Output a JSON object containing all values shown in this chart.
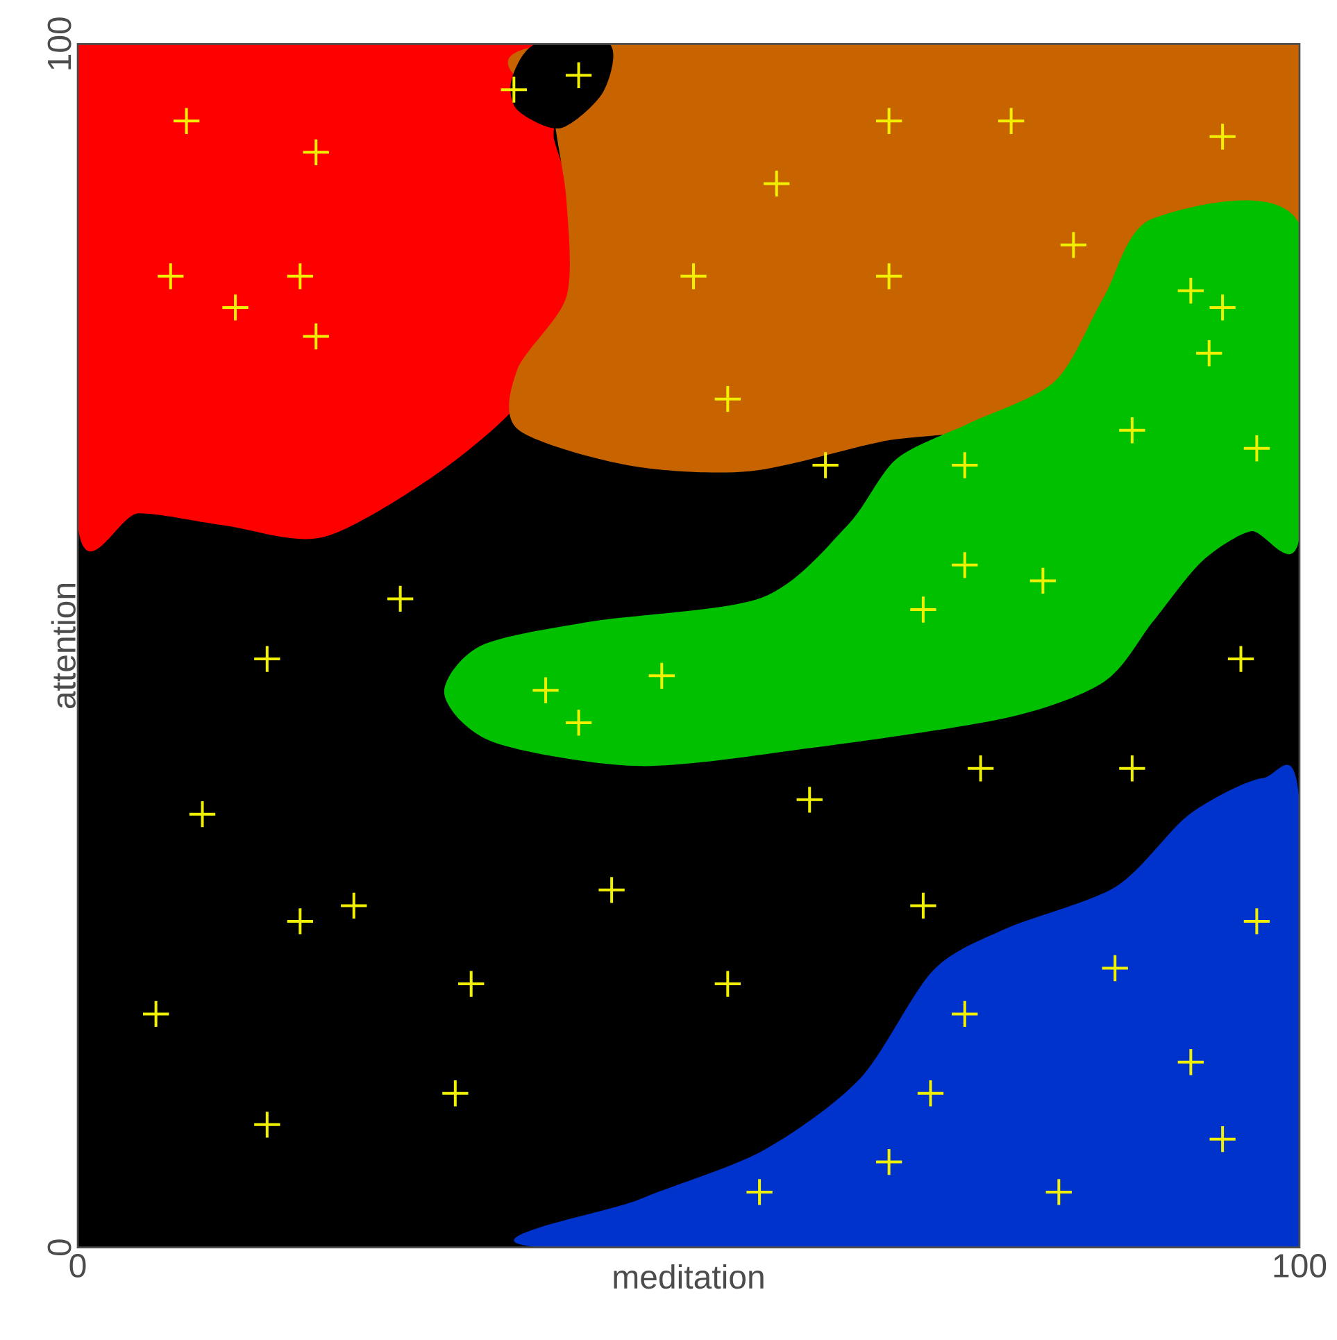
{
  "chart_data": {
    "type": "scatter",
    "xlabel": "meditation",
    "ylabel": "attention",
    "color": "#f0f000",
    "marker": "cross",
    "xlim": [
      0,
      100
    ],
    "ylim": [
      0,
      100
    ],
    "xticks": [
      0,
      100
    ],
    "yticks": [
      0,
      100
    ],
    "x": [
      8.9,
      19.5,
      7.6,
      18.2,
      12.9,
      19.5,
      35.7,
      41.0,
      66.4,
      76.4,
      93.7,
      57.2,
      50.4,
      66.4,
      81.5,
      53.2,
      61.2,
      91.1,
      93.7,
      92.6,
      86.3,
      96.5,
      72.6,
      72.6,
      79.0,
      69.2,
      38.3,
      41.0,
      47.8,
      26.4,
      15.5,
      95.2,
      10.2,
      22.6,
      18.2,
      43.7,
      59.9,
      73.9,
      86.3,
      69.2,
      32.2,
      53.2,
      6.4,
      30.9,
      15.5,
      96.5,
      84.9,
      72.6,
      91.1,
      69.8,
      93.7,
      66.4,
      55.8,
      80.3
    ],
    "values": [
      93.6,
      91.0,
      80.7,
      80.7,
      78.1,
      75.7,
      96.2,
      97.4,
      93.6,
      93.6,
      92.3,
      88.4,
      80.7,
      80.7,
      83.3,
      70.5,
      65.0,
      79.5,
      78.1,
      74.3,
      67.9,
      66.4,
      65.0,
      56.7,
      55.4,
      53.0,
      46.3,
      43.6,
      47.5,
      53.9,
      48.9,
      48.9,
      36.0,
      28.4,
      27.1,
      29.7,
      37.2,
      39.8,
      39.8,
      28.4,
      21.9,
      21.9,
      19.4,
      12.8,
      10.2,
      27.1,
      23.2,
      19.4,
      15.4,
      12.8,
      9.0,
      7.1,
      4.6,
      4.6
    ]
  }
}
